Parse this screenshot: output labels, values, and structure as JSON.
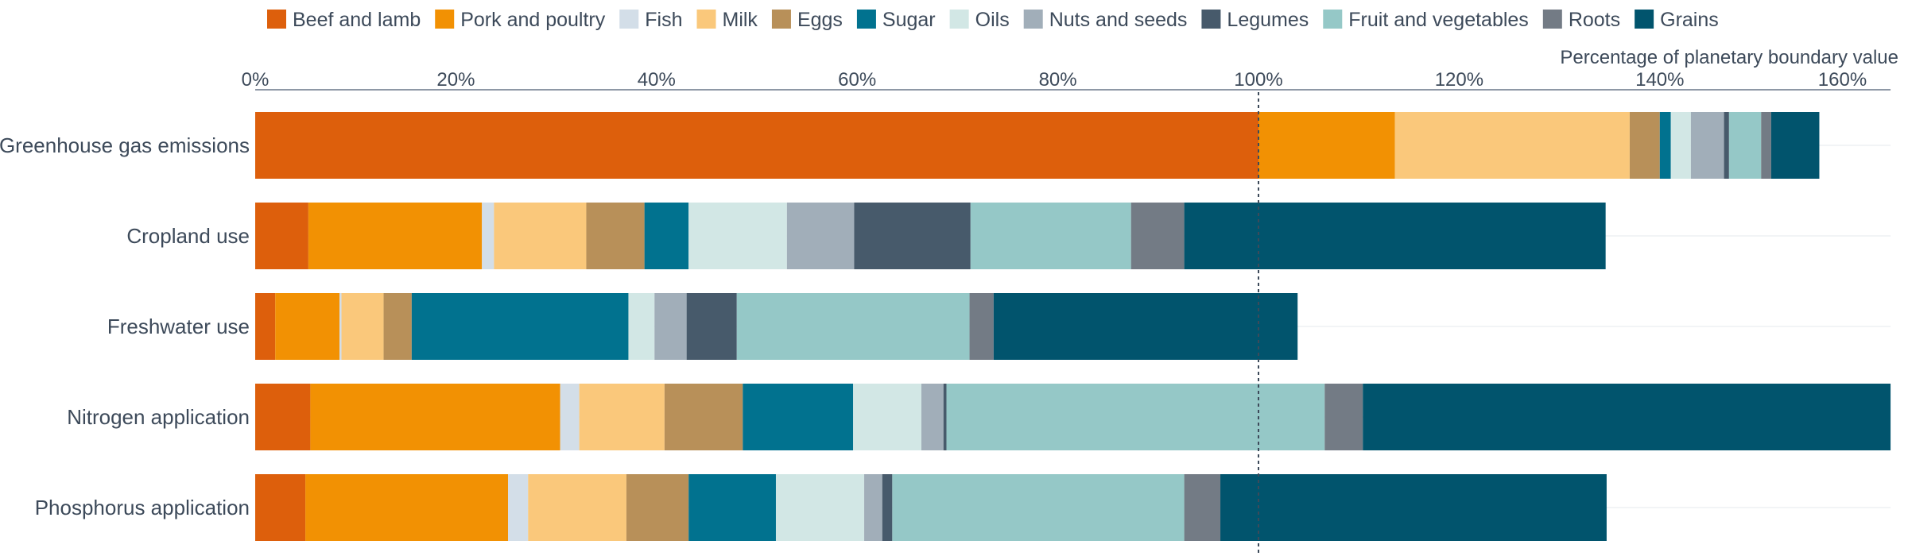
{
  "chart_data": {
    "type": "bar",
    "orientation": "horizontal",
    "stacked": true,
    "axis_title": "Percentage of planetary boundary value",
    "x_ticks": [
      "0%",
      "20%",
      "40%",
      "60%",
      "80%",
      "100%",
      "120%",
      "140%",
      "160%"
    ],
    "xlim": [
      0,
      163
    ],
    "reference_line": 100,
    "legend_position": "top",
    "categories": [
      "Greenhouse gas emissions",
      "Cropland use",
      "Freshwater use",
      "Nitrogen application",
      "Phosphorus application"
    ],
    "series": [
      {
        "name": "Beef and lamb",
        "color": "#dd5f0c",
        "values": [
          100,
          5.3,
          2.0,
          5.5,
          5.0
        ]
      },
      {
        "name": "Pork and poultry",
        "color": "#f29103",
        "values": [
          13.6,
          17.3,
          6.4,
          24.9,
          20.2
        ]
      },
      {
        "name": "Fish",
        "color": "#d3dee8",
        "values": [
          0,
          1.2,
          0.2,
          1.9,
          2.0
        ]
      },
      {
        "name": "Milk",
        "color": "#fac87b",
        "values": [
          23.4,
          9.2,
          4.2,
          8.5,
          9.8
        ]
      },
      {
        "name": "Eggs",
        "color": "#b89059",
        "values": [
          3.0,
          5.8,
          2.8,
          7.8,
          6.2
        ]
      },
      {
        "name": "Sugar",
        "color": "#01728f",
        "values": [
          1.1,
          4.4,
          21.6,
          11.0,
          8.7
        ]
      },
      {
        "name": "Oils",
        "color": "#d2e7e5",
        "values": [
          2.0,
          9.8,
          2.6,
          6.8,
          8.8
        ]
      },
      {
        "name": "Nuts and seeds",
        "color": "#a1aeb9",
        "values": [
          3.3,
          6.7,
          3.2,
          2.2,
          1.8
        ]
      },
      {
        "name": "Legumes",
        "color": "#475a6b",
        "values": [
          0.5,
          11.6,
          5.0,
          0.3,
          1.0
        ]
      },
      {
        "name": "Fruit and vegetables",
        "color": "#95c8c7",
        "values": [
          3.2,
          16.0,
          23.2,
          37.7,
          29.1
        ]
      },
      {
        "name": "Roots",
        "color": "#737b85",
        "values": [
          1.0,
          5.3,
          2.4,
          3.8,
          3.6
        ]
      },
      {
        "name": "Grains",
        "color": "#01546d",
        "values": [
          4.8,
          42.0,
          30.3,
          53.2,
          38.5
        ]
      }
    ]
  }
}
